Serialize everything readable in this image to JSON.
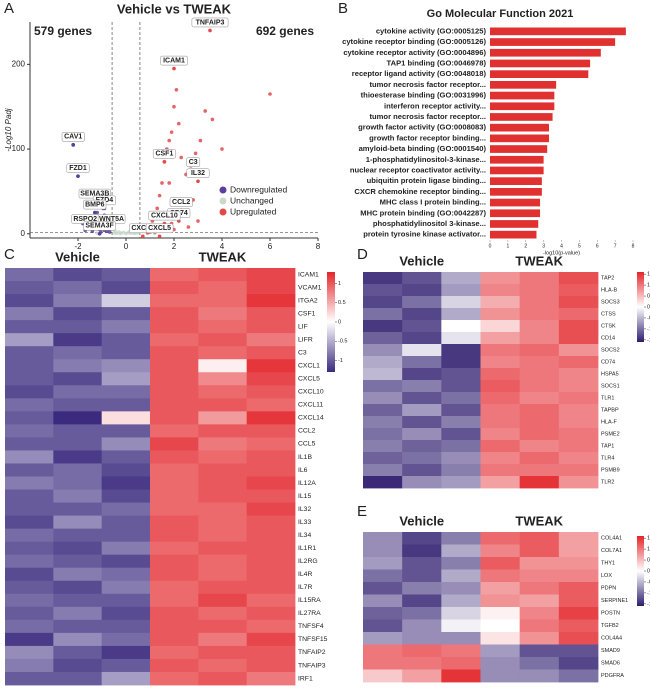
{
  "chart_data": [
    {
      "type": "scatter",
      "panel": "A",
      "title": "Vehicle vs TWEAK",
      "left_note": "579 genes",
      "right_note": "692 genes",
      "ylabel": "-Log10 Padj",
      "xlim": [
        -4,
        8
      ],
      "xticks": [
        -2,
        0,
        2,
        4,
        6,
        8
      ],
      "ylim": [
        -5,
        250
      ],
      "yticks": [
        0,
        100,
        200
      ],
      "vlines": [
        -0.58,
        0.58
      ],
      "hline": 1.3,
      "legend": "lower right",
      "series": [
        {
          "name": "Downregulated",
          "color": "#5a3f9c",
          "x": [
            -2.2,
            -2.0,
            -1.8,
            -1.6,
            -1.5,
            -1.4,
            -1.3,
            -1.2,
            -1.1,
            -1.0,
            -0.95,
            -0.9,
            -0.85,
            -0.8,
            -0.75,
            -0.7,
            -0.68,
            -1.7,
            -1.25,
            -0.9,
            -1.05,
            -0.8,
            -1.4,
            -0.7
          ],
          "y": [
            105,
            68,
            12,
            8,
            20,
            15,
            38,
            25,
            5,
            10,
            30,
            4,
            18,
            3,
            12,
            6,
            2,
            4,
            8,
            22,
            2,
            7,
            3,
            14
          ]
        },
        {
          "name": "Unchanged",
          "color": "#c9d9cc",
          "x": [
            -0.5,
            -0.4,
            -0.3,
            -0.2,
            -0.1,
            0,
            0.1,
            0.2,
            0.3,
            0.4,
            0.5,
            -0.45,
            0.35,
            -0.25,
            0.15,
            1.2,
            -1.2
          ],
          "y": [
            1,
            0.5,
            2,
            0.8,
            1.5,
            0.3,
            1.2,
            0.6,
            2,
            0.9,
            1.1,
            3,
            0.4,
            0.2,
            2.5,
            0.5,
            0.8
          ]
        },
        {
          "name": "Upregulated",
          "color": "#e2494a",
          "x": [
            0.7,
            0.8,
            0.9,
            1.0,
            1.1,
            1.2,
            1.3,
            1.4,
            1.5,
            1.6,
            1.7,
            1.8,
            1.9,
            2.0,
            2.1,
            2.2,
            2.3,
            2.5,
            2.7,
            2.9,
            3.1,
            3.3,
            3.6,
            4.0,
            6.0,
            1.0,
            1.3,
            1.6,
            1.9,
            2.4,
            2.8,
            0.9,
            1.2,
            1.5,
            2.0,
            2.6,
            3.0,
            1.8
          ],
          "y": [
            3,
            5,
            8,
            10,
            15,
            20,
            30,
            45,
            60,
            85,
            100,
            110,
            120,
            150,
            170,
            130,
            90,
            70,
            80,
            95,
            110,
            145,
            135,
            100,
            165,
            2,
            4,
            6,
            12,
            25,
            40,
            1,
            2,
            3,
            5,
            8,
            15,
            60
          ]
        }
      ],
      "annotations": [
        {
          "text": "TNFAIP3",
          "x": 3.5,
          "y": 240
        },
        {
          "text": "ICAM1",
          "x": 2.0,
          "y": 195
        },
        {
          "text": "CAV1",
          "x": -2.2,
          "y": 105
        },
        {
          "text": "FZD1",
          "x": -2.0,
          "y": 68
        },
        {
          "text": "CSF1",
          "x": 1.6,
          "y": 85
        },
        {
          "text": "C3",
          "x": 2.8,
          "y": 75
        },
        {
          "text": "IL32",
          "x": 3.0,
          "y": 62
        },
        {
          "text": "SEMA3B",
          "x": -1.3,
          "y": 38
        },
        {
          "text": "FZD4",
          "x": -0.9,
          "y": 30
        },
        {
          "text": "BMP6",
          "x": -1.3,
          "y": 25
        },
        {
          "text": "CCL2",
          "x": 2.3,
          "y": 28
        },
        {
          "text": "CD74",
          "x": 2.2,
          "y": 15
        },
        {
          "text": "CXCL10",
          "x": 1.6,
          "y": 12
        },
        {
          "text": "RSPO2",
          "x": -1.7,
          "y": 8
        },
        {
          "text": "WNT5A",
          "x": -0.6,
          "y": 8
        },
        {
          "text": "SEMA3F",
          "x": -1.1,
          "y": 0
        },
        {
          "text": "CXCL1",
          "x": 0.7,
          "y": -3
        },
        {
          "text": "CXCL5",
          "x": 1.4,
          "y": -3
        }
      ]
    },
    {
      "type": "bar",
      "orientation": "horizontal",
      "panel": "B",
      "title": "Go Molecular Function 2021",
      "xlabel": "-log10(p-value)",
      "color": "#e03030",
      "xlim": [
        0,
        8
      ],
      "xticks": [
        0,
        1,
        2,
        3,
        4,
        5,
        6,
        7,
        8
      ],
      "categories": [
        "cytokine activity (GO:0005125)",
        "cytokine receptor binding (GO:0005126)",
        "cytokine receptor activity (GO:0004896)",
        "TAP1 binding (GO:0046978)",
        "receptor ligand activity (GO:0048018)",
        "tumor necrosis factor receptor...",
        "thioesterase binding (GO:0031996)",
        "interferon receptor activity...",
        "tumor necrosis factor receptor...",
        "growth factor activity (GO:0008083)",
        "growth factor receptor binding...",
        "amyloid-beta binding (GO:0001540)",
        "1-phosphatidylinositol-3-kinase...",
        "nuclear receptor coactivator activity...",
        "ubiquitin protein ligase binding...",
        "CXCR chemokine receptor binding...",
        "MHC class I protein binding...",
        "MHC protein binding (GO:0042287)",
        "phosphatidylinositol 3-kinase...",
        "protein tyrosine kinase activator..."
      ],
      "values": [
        7.6,
        7.0,
        6.2,
        5.6,
        5.5,
        3.7,
        3.6,
        3.6,
        3.5,
        3.3,
        3.3,
        3.2,
        3.0,
        3.0,
        2.9,
        2.9,
        2.8,
        2.8,
        2.7,
        2.6
      ]
    },
    {
      "type": "heatmap",
      "panel": "C",
      "groups": [
        "Vehicle",
        "TWEAK"
      ],
      "colors": [
        "#3b2a7e",
        "#ffffff",
        "#e3262b"
      ],
      "colorlim": [
        -1.3,
        1.3
      ],
      "colorticks": [
        1,
        0.5,
        0,
        -0.5,
        -1
      ],
      "rows": [
        "ICAM1",
        "VCAM1",
        "ITGA2",
        "CSF1",
        "LIF",
        "LIFR",
        "C3",
        "CXCL1",
        "CXCL5",
        "CXCL10",
        "CXCL11",
        "CXCL14",
        "CCL2",
        "CCL5",
        "IL1B",
        "IL6",
        "IL12A",
        "IL15",
        "IL32",
        "IL33",
        "IL34",
        "IL1R1",
        "IL2RG",
        "IL4R",
        "IL7R",
        "IL15RA",
        "IL27RA",
        "TNFSF4",
        "TNFSF15",
        "TNFAIP2",
        "TNFAIP3",
        "IRF1"
      ],
      "matrix": [
        [
          -0.9,
          -1.1,
          -1.0,
          0.9,
          1.0,
          1.1
        ],
        [
          -1.0,
          -0.9,
          -1.1,
          1.0,
          0.9,
          1.1
        ],
        [
          -1.1,
          -0.8,
          -0.3,
          0.9,
          0.9,
          1.2
        ],
        [
          -0.8,
          -1.1,
          -1.0,
          1.0,
          0.8,
          1.0
        ],
        [
          -1.0,
          -1.0,
          -0.8,
          1.0,
          0.9,
          1.0
        ],
        [
          -0.6,
          -1.2,
          -1.0,
          0.9,
          1.0,
          0.8
        ],
        [
          -1.0,
          -0.9,
          -1.0,
          1.0,
          0.9,
          1.0
        ],
        [
          -1.0,
          -0.8,
          -0.7,
          1.0,
          0.1,
          1.2
        ],
        [
          -1.0,
          -1.1,
          -0.6,
          1.0,
          0.7,
          1.1
        ],
        [
          -1.1,
          -0.9,
          -0.9,
          1.0,
          0.9,
          1.0
        ],
        [
          -0.9,
          -1.0,
          -1.0,
          1.0,
          1.0,
          0.9
        ],
        [
          -1.0,
          -1.3,
          0.2,
          1.0,
          0.6,
          1.2
        ],
        [
          -0.9,
          -1.0,
          -1.0,
          0.9,
          1.0,
          1.0
        ],
        [
          -1.0,
          -1.0,
          -0.7,
          1.1,
          0.8,
          0.9
        ],
        [
          -0.7,
          -1.2,
          -1.0,
          1.0,
          0.9,
          1.0
        ],
        [
          -1.0,
          -0.9,
          -1.1,
          0.9,
          1.0,
          1.0
        ],
        [
          -0.8,
          -0.9,
          -1.2,
          0.9,
          1.0,
          1.1
        ],
        [
          -1.0,
          -0.8,
          -1.1,
          0.9,
          1.0,
          1.0
        ],
        [
          -1.0,
          -1.0,
          -0.9,
          0.9,
          0.9,
          1.1
        ],
        [
          -1.1,
          -0.7,
          -1.0,
          1.0,
          0.9,
          1.0
        ],
        [
          -0.9,
          -1.0,
          -1.0,
          1.0,
          0.9,
          1.0
        ],
        [
          -1.0,
          -1.1,
          -0.8,
          0.9,
          1.0,
          1.0
        ],
        [
          -0.9,
          -1.0,
          -1.1,
          1.0,
          0.9,
          1.0
        ],
        [
          -1.1,
          -0.8,
          -0.9,
          1.0,
          0.9,
          1.0
        ],
        [
          -1.0,
          -1.1,
          -0.8,
          0.9,
          1.0,
          1.0
        ],
        [
          -0.9,
          -1.0,
          -1.0,
          0.9,
          1.1,
          0.9
        ],
        [
          -1.0,
          -0.8,
          -1.1,
          1.0,
          0.9,
          1.0
        ],
        [
          -0.9,
          -1.0,
          -1.0,
          1.0,
          1.0,
          0.9
        ],
        [
          -1.2,
          -0.7,
          -0.9,
          1.0,
          0.8,
          1.1
        ],
        [
          -0.7,
          -1.0,
          -1.2,
          0.9,
          1.0,
          1.0
        ],
        [
          -0.8,
          -1.1,
          -1.0,
          1.0,
          0.9,
          1.0
        ],
        [
          -1.0,
          -1.0,
          -0.6,
          0.9,
          1.0,
          0.8
        ]
      ]
    },
    {
      "type": "heatmap",
      "panel": "D",
      "groups": [
        "Vehicle",
        "TWEAK"
      ],
      "colors": [
        "#2e1b6e",
        "#ffffff",
        "#e3262b"
      ],
      "colorlim": [
        -1.6,
        1.6
      ],
      "colorticks": [
        1.5,
        1,
        0.5,
        0,
        -0.5,
        -1,
        -1.5
      ],
      "rows": [
        "TAP2",
        "HLA-B",
        "SOCS3",
        "CTSS",
        "CTSK",
        "CD14",
        "SOCS2",
        "CD74",
        "HSPA5",
        "SOCS1",
        "TLR1",
        "TAPBP",
        "HLA-F",
        "PSME2",
        "TAP1",
        "TLR4",
        "PSMB9",
        "TLR2"
      ],
      "matrix": [
        [
          -1.4,
          -1.2,
          -0.6,
          0.8,
          1.0,
          1.3
        ],
        [
          -1.2,
          -1.3,
          -0.7,
          0.9,
          1.0,
          1.2
        ],
        [
          -1.3,
          -1.0,
          -0.3,
          0.6,
          1.0,
          1.3
        ],
        [
          -1.0,
          -1.3,
          -0.6,
          0.8,
          1.0,
          1.1
        ],
        [
          -1.4,
          -1.2,
          0.0,
          0.3,
          0.9,
          1.3
        ],
        [
          -1.1,
          -1.3,
          -0.2,
          0.7,
          0.9,
          1.3
        ],
        [
          -0.8,
          -0.2,
          -1.4,
          1.0,
          1.1,
          0.8
        ],
        [
          -0.6,
          -1.0,
          -1.4,
          0.9,
          1.0,
          1.1
        ],
        [
          -0.5,
          -1.3,
          -1.2,
          1.1,
          1.0,
          0.9
        ],
        [
          -1.0,
          -0.9,
          -1.2,
          1.2,
          1.0,
          0.9
        ],
        [
          -0.8,
          -1.2,
          -1.0,
          1.1,
          0.9,
          1.0
        ],
        [
          -1.1,
          -0.7,
          -1.2,
          1.0,
          1.1,
          0.9
        ],
        [
          -0.9,
          -1.2,
          -0.9,
          1.0,
          1.1,
          0.9
        ],
        [
          -1.0,
          -0.8,
          -1.2,
          0.9,
          1.1,
          1.0
        ],
        [
          -0.9,
          -1.1,
          -1.0,
          1.1,
          0.9,
          1.0
        ],
        [
          -1.1,
          -1.0,
          -0.8,
          0.9,
          1.1,
          0.9
        ],
        [
          -0.9,
          -1.2,
          -0.9,
          1.0,
          1.0,
          1.0
        ],
        [
          -1.5,
          -0.8,
          -0.7,
          0.7,
          1.5,
          0.8
        ]
      ]
    },
    {
      "type": "heatmap",
      "panel": "E",
      "groups": [
        "Vehicle",
        "TWEAK"
      ],
      "colors": [
        "#2e1b6e",
        "#ffffff",
        "#e3262b"
      ],
      "colorlim": [
        -1.6,
        1.6
      ],
      "colorticks": [
        1.5,
        1,
        0.5,
        0,
        -0.5,
        -1,
        -1.5
      ],
      "rows": [
        "COL4A1",
        "COL7A1",
        "THY1",
        "LOX",
        "PDPN",
        "SERPINE1",
        "POSTN",
        "TGFB2",
        "COL4A4",
        "SMAD9",
        "SMAD6",
        "PDGFRA"
      ],
      "matrix": [
        [
          -0.8,
          -1.3,
          -0.9,
          1.1,
          1.2,
          0.7
        ],
        [
          -0.8,
          -1.4,
          -0.6,
          0.9,
          1.2,
          0.7
        ],
        [
          -0.7,
          -1.2,
          -0.9,
          1.2,
          0.8,
          0.8
        ],
        [
          -1.0,
          -1.2,
          -0.6,
          1.0,
          0.9,
          0.9
        ],
        [
          -1.2,
          -0.9,
          -0.8,
          0.7,
          1.0,
          1.2
        ],
        [
          -0.8,
          -1.3,
          -0.6,
          0.8,
          0.7,
          1.2
        ],
        [
          -1.1,
          -1.0,
          -0.3,
          0.1,
          0.9,
          1.4
        ],
        [
          -1.2,
          -0.8,
          -0.1,
          0.0,
          1.0,
          1.2
        ],
        [
          -0.7,
          -0.8,
          -0.8,
          0.2,
          0.8,
          1.3
        ],
        [
          1.0,
          1.1,
          1.0,
          -0.7,
          -1.2,
          -1.2
        ],
        [
          1.0,
          1.0,
          1.1,
          -0.8,
          -1.0,
          -1.3
        ],
        [
          0.4,
          0.7,
          1.5,
          -0.8,
          -0.8,
          -1.0
        ]
      ]
    }
  ]
}
